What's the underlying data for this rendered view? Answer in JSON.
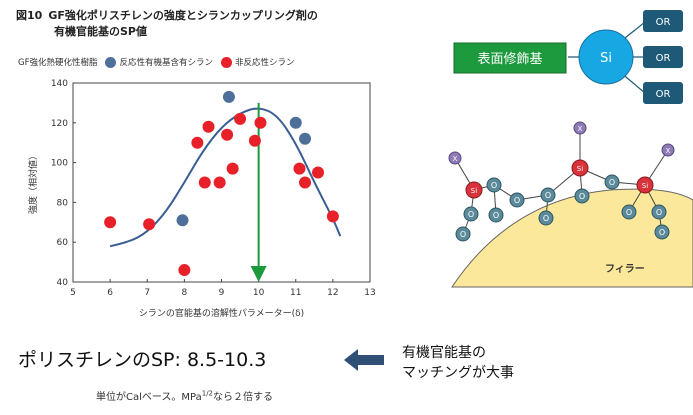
{
  "figure": {
    "number": "図10",
    "title_line1": "GF強化ポリスチレンの強度とシランカップリング剤の",
    "title_line2": "有機官能基のSP値"
  },
  "legend": {
    "resin_label": "GF強化熱硬化性樹脂",
    "reactive_label": "反応性有機基含有シラン",
    "nonreactive_label": "非反応性シラン",
    "reactive_color": "#4e6f9a",
    "nonreactive_color": "#e8202a"
  },
  "chart_data": {
    "type": "scatter",
    "xlabel": "シランの官能基の溶解性パラメーター(δ)",
    "ylabel": "強度（相対値）",
    "xlim": [
      5,
      13
    ],
    "ylim": [
      40,
      140
    ],
    "xticks": [
      5,
      6,
      7,
      8,
      9,
      10,
      11,
      12,
      13
    ],
    "yticks": [
      40,
      60,
      80,
      100,
      120,
      140
    ],
    "grid": false,
    "series": [
      {
        "name": "反応性有機基含有シラン",
        "color": "#4e6f9a",
        "points": [
          [
            7.95,
            71
          ],
          [
            9.2,
            133
          ],
          [
            11.0,
            120
          ],
          [
            11.25,
            112
          ]
        ]
      },
      {
        "name": "非反応性シラン",
        "color": "#e8202a",
        "points": [
          [
            6.0,
            70
          ],
          [
            7.05,
            69
          ],
          [
            8.0,
            46
          ],
          [
            8.35,
            110
          ],
          [
            8.55,
            90
          ],
          [
            8.65,
            118
          ],
          [
            8.95,
            90
          ],
          [
            9.15,
            114
          ],
          [
            9.3,
            97
          ],
          [
            9.5,
            122
          ],
          [
            9.9,
            111
          ],
          [
            10.05,
            120
          ],
          [
            11.1,
            97
          ],
          [
            11.25,
            90
          ],
          [
            11.6,
            95
          ],
          [
            12.0,
            73
          ]
        ]
      }
    ],
    "trend_curve": [
      [
        6.0,
        58
      ],
      [
        6.5,
        60
      ],
      [
        7.0,
        65
      ],
      [
        7.5,
        75
      ],
      [
        8.0,
        90
      ],
      [
        8.5,
        106
      ],
      [
        9.0,
        118
      ],
      [
        9.5,
        125
      ],
      [
        10.0,
        128
      ],
      [
        10.5,
        124
      ],
      [
        11.0,
        110
      ],
      [
        11.5,
        90
      ],
      [
        12.0,
        72
      ],
      [
        12.2,
        63
      ]
    ],
    "marker_x": 10,
    "trend_color": "#3a5d94",
    "marker_color": "#1a9a3a"
  },
  "diagram": {
    "surface_label": "表面修飾基",
    "si_label": "Si",
    "or_labels": [
      "OR",
      "OR",
      "OR"
    ],
    "filler_label": "フィラー",
    "box_color": "#1e9a3e",
    "si_color": "#17a7e2",
    "or_color": "#1e5a78",
    "filler_color": "#fbe89a"
  },
  "molecule": {
    "x_label": "X",
    "si_label": "Si",
    "o_label": "O"
  },
  "bottom": {
    "sp_text": "ポリスチレンのSP: 8.5-10.3",
    "matching_line1": "有機官能基の",
    "matching_line2": "マッチングが大事",
    "note_main": "単位がCalベース。MPa",
    "note_sup": "1/2",
    "note_tail": "なら２倍する",
    "arrow_color": "#2f4f74"
  }
}
